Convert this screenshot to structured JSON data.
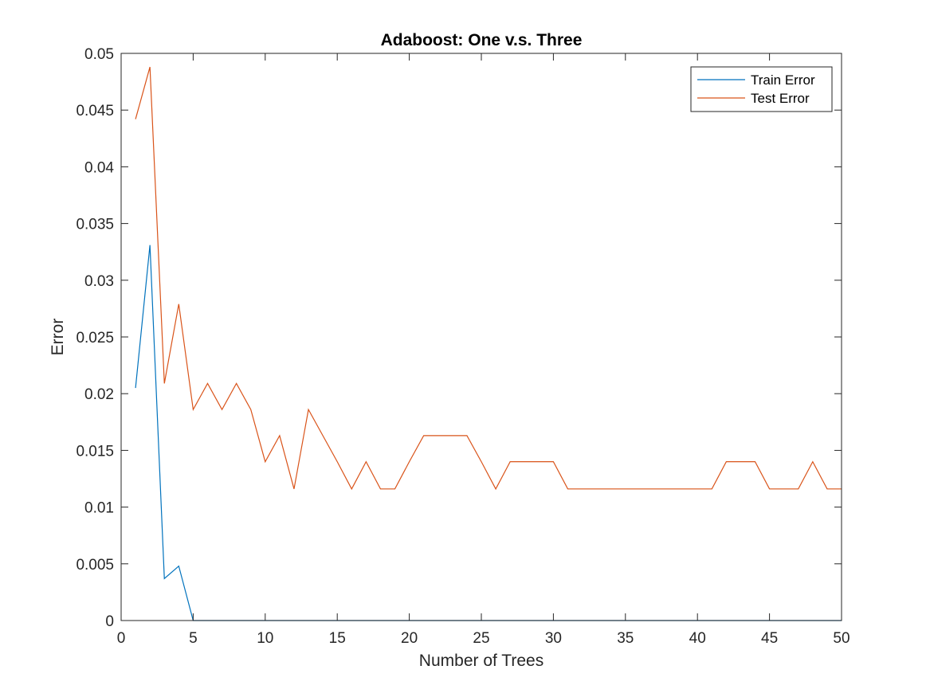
{
  "chart_data": {
    "type": "line",
    "title": "Adaboost: One v.s. Three",
    "xlabel": "Number of Trees",
    "ylabel": "Error",
    "xlim": [
      0,
      50
    ],
    "ylim": [
      0,
      0.05
    ],
    "xticks": [
      "0",
      "5",
      "10",
      "15",
      "20",
      "25",
      "30",
      "35",
      "40",
      "45",
      "50"
    ],
    "yticks": [
      "0",
      "0.005",
      "0.01",
      "0.015",
      "0.02",
      "0.025",
      "0.03",
      "0.035",
      "0.04",
      "0.045",
      "0.05"
    ],
    "grid": false,
    "legend_position": "top-right",
    "x": [
      1,
      2,
      3,
      4,
      5,
      6,
      7,
      8,
      9,
      10,
      11,
      12,
      13,
      14,
      15,
      16,
      17,
      18,
      19,
      20,
      21,
      22,
      23,
      24,
      25,
      26,
      27,
      28,
      29,
      30,
      31,
      32,
      33,
      34,
      35,
      36,
      37,
      38,
      39,
      40,
      41,
      42,
      43,
      44,
      45,
      46,
      47,
      48,
      49,
      50
    ],
    "series": [
      {
        "name": "Train Error",
        "color": "#0072BD",
        "values": [
          0.0205,
          0.0331,
          0.0037,
          0.0048,
          0,
          0,
          0,
          0,
          0,
          0,
          0,
          0,
          0,
          0,
          0,
          0,
          0,
          0,
          0,
          0,
          0,
          0,
          0,
          0,
          0,
          0,
          0,
          0,
          0,
          0,
          0,
          0,
          0,
          0,
          0,
          0,
          0,
          0,
          0,
          0,
          0,
          0,
          0,
          0,
          0,
          0,
          0,
          0,
          0,
          0
        ]
      },
      {
        "name": "Test Error",
        "color": "#D95319",
        "values": [
          0.0442,
          0.0488,
          0.0209,
          0.0279,
          0.0186,
          0.0209,
          0.0186,
          0.0209,
          0.0186,
          0.014,
          0.0163,
          0.0116,
          0.0186,
          0.0163,
          0.014,
          0.0116,
          0.014,
          0.0116,
          0.0116,
          0.014,
          0.0163,
          0.0163,
          0.0163,
          0.0163,
          0.014,
          0.0116,
          0.014,
          0.014,
          0.014,
          0.014,
          0.0116,
          0.0116,
          0.0116,
          0.0116,
          0.0116,
          0.0116,
          0.0116,
          0.0116,
          0.0116,
          0.0116,
          0.0116,
          0.014,
          0.014,
          0.014,
          0.0116,
          0.0116,
          0.0116,
          0.014,
          0.0116,
          0.0116
        ]
      }
    ]
  }
}
